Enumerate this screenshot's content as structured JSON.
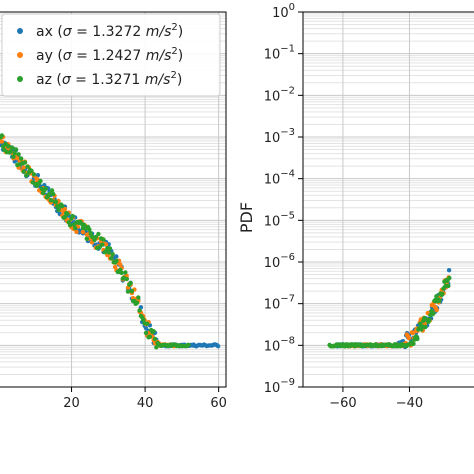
{
  "chart_data": [
    {
      "type": "scatter",
      "xlim": [
        0,
        62
      ],
      "x_ticks": [
        20,
        40,
        60
      ],
      "x_tick_labels": [
        "20",
        "40",
        "60"
      ],
      "log_y": true,
      "grid": true,
      "legend_position": "top-right",
      "series": [
        {
          "name": "ax ($\\sigma = 1.3272\\ m/s^2$)",
          "label_main": "ax (",
          "label_sigma": "σ",
          "label_eq": " = 1.3272 ",
          "label_unit": "m/s",
          "label_exp": "2",
          "label_close": ")",
          "color": "#1f77b4",
          "x": [
            0,
            10,
            20,
            30,
            34,
            38,
            40,
            44,
            48,
            52,
            56,
            60
          ],
          "y": [
            0.001,
            0.0001,
            1e-05,
            2e-06,
            5e-07,
            1e-07,
            3e-08,
            1e-08,
            1e-08,
            1e-08,
            1e-08,
            1e-08
          ]
        },
        {
          "name": "ay ($\\sigma = 1.2427\\ m/s^2$)",
          "label_main": "ay (",
          "label_sigma": "σ",
          "label_eq": " = 1.2427 ",
          "label_unit": "m/s",
          "label_exp": "2",
          "label_close": ")",
          "color": "#ff7f0e",
          "x": [
            0,
            10,
            20,
            30,
            34,
            38,
            40,
            44,
            48
          ],
          "y": [
            0.001,
            0.0001,
            1e-05,
            2e-06,
            5e-07,
            1e-07,
            3e-08,
            1e-08,
            1e-08
          ]
        },
        {
          "name": "az ($\\sigma = 1.3271\\ m/s^2$)",
          "label_main": "az (",
          "label_sigma": "σ",
          "label_eq": " = 1.3271 ",
          "label_unit": "m/s",
          "label_exp": "2",
          "label_close": ")",
          "color": "#2ca02c",
          "x": [
            0,
            10,
            20,
            30,
            34,
            38,
            40,
            44,
            48,
            52
          ],
          "y": [
            0.001,
            0.0001,
            1e-05,
            2e-06,
            5e-07,
            1e-07,
            3e-08,
            1e-08,
            1e-08,
            1e-08
          ]
        }
      ]
    },
    {
      "type": "scatter",
      "ylabel": "PDF",
      "xlim": [
        -72,
        -20
      ],
      "x_ticks": [
        -60,
        -40
      ],
      "x_tick_labels": [
        "−60",
        "−40"
      ],
      "log_y": true,
      "ylim": [
        1e-09,
        1
      ],
      "y_ticks": [
        {
          "value": 1,
          "base": "10",
          "exp": "0"
        },
        {
          "value": 0.1,
          "base": "10",
          "exp": "−1"
        },
        {
          "value": 0.01,
          "base": "10",
          "exp": "−2"
        },
        {
          "value": 0.001,
          "base": "10",
          "exp": "−3"
        },
        {
          "value": 0.0001,
          "base": "10",
          "exp": "−4"
        },
        {
          "value": 1e-05,
          "base": "10",
          "exp": "−5"
        },
        {
          "value": 1e-06,
          "base": "10",
          "exp": "−6"
        },
        {
          "value": 1e-07,
          "base": "10",
          "exp": "−7"
        },
        {
          "value": 1e-08,
          "base": "10",
          "exp": "−8"
        },
        {
          "value": 1e-09,
          "base": "10",
          "exp": "−9"
        }
      ],
      "grid": true,
      "series": [
        {
          "color": "#1f77b4",
          "x": [
            -62,
            -56,
            -50,
            -44,
            -38,
            -34,
            -30,
            -28
          ],
          "y": [
            1e-08,
            1e-08,
            1e-08,
            1e-08,
            2e-08,
            5e-08,
            2e-07,
            5e-07
          ]
        },
        {
          "color": "#ff7f0e",
          "x": [
            -60,
            -54,
            -48,
            -42,
            -38,
            -34,
            -30,
            -28
          ],
          "y": [
            1e-08,
            1e-08,
            1e-08,
            1e-08,
            2e-08,
            5e-08,
            2e-07,
            6e-07
          ]
        },
        {
          "color": "#2ca02c",
          "x": [
            -64,
            -58,
            -52,
            -46,
            -40,
            -36,
            -32,
            -28
          ],
          "y": [
            1e-08,
            1e-08,
            1e-08,
            1e-08,
            1e-08,
            3e-08,
            1e-07,
            4e-07
          ]
        }
      ]
    }
  ]
}
